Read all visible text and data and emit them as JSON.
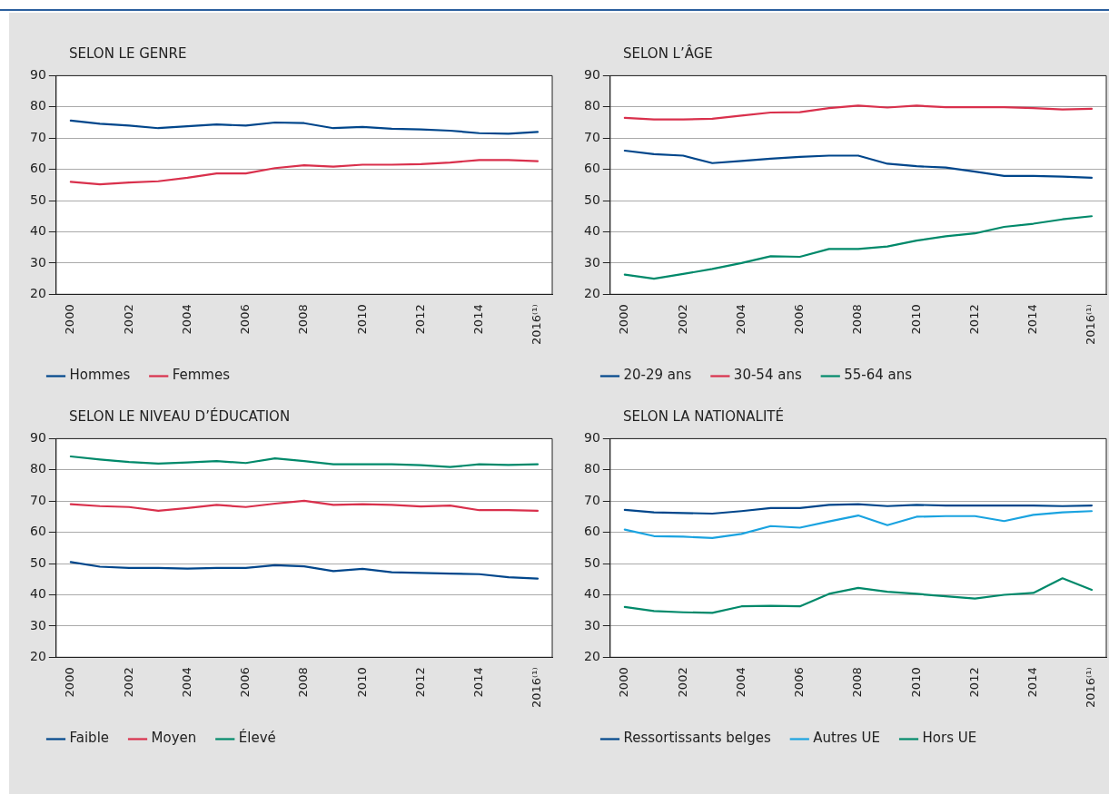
{
  "chart_data": [
    {
      "type": "line",
      "title": "SELON LE GENRE",
      "categories": [
        "2000",
        null,
        "2002",
        null,
        "2004",
        null,
        "2006",
        null,
        "2008",
        null,
        "2010",
        null,
        "2012",
        null,
        "2014",
        null,
        "2016⁽¹⁾"
      ],
      "ylim": [
        20,
        90
      ],
      "yticks": [
        20,
        30,
        40,
        50,
        60,
        70,
        80,
        90
      ],
      "grid": "y",
      "legend": "bottom",
      "marker": "none",
      "line_style": "solid",
      "series": [
        {
          "name": "Hommes",
          "color": "#00468b",
          "values": [
            75.6,
            74.6,
            74,
            73.2,
            73.8,
            74.4,
            74,
            75,
            74.8,
            73.2,
            73.6,
            73,
            72.8,
            72.4,
            71.6,
            71.4,
            72
          ]
        },
        {
          "name": "Femmes",
          "color": "#d9304c",
          "values": [
            56,
            55.2,
            55.8,
            56.2,
            57.3,
            58.7,
            58.7,
            60.4,
            61.3,
            60.9,
            61.5,
            61.5,
            61.7,
            62.2,
            63,
            63,
            62.6
          ]
        }
      ]
    },
    {
      "type": "line",
      "title": "SELON L’ÂGE",
      "categories": [
        "2000",
        null,
        "2002",
        null,
        "2004",
        null,
        "2006",
        null,
        "2008",
        null,
        "2010",
        null,
        "2012",
        null,
        "2014",
        null,
        "2016⁽¹⁾"
      ],
      "ylim": [
        20,
        90
      ],
      "yticks": [
        20,
        30,
        40,
        50,
        60,
        70,
        80,
        90
      ],
      "grid": "y",
      "legend": "bottom",
      "marker": "none",
      "line_style": "solid",
      "series": [
        {
          "name": "20-29 ans",
          "color": "#00468b",
          "values": [
            66,
            64.9,
            64.4,
            62,
            62.7,
            63.4,
            64,
            64.4,
            64.4,
            61.8,
            61,
            60.6,
            59.3,
            57.9,
            57.9,
            57.7,
            57.3
          ]
        },
        {
          "name": "30-54 ans",
          "color": "#d9304c",
          "values": [
            76.5,
            76,
            76,
            76.2,
            77.2,
            78.2,
            78.3,
            79.6,
            80.4,
            79.8,
            80.4,
            79.9,
            79.9,
            79.9,
            79.6,
            79.2,
            79.4
          ]
        },
        {
          "name": "55-64 ans",
          "color": "#00896a",
          "values": [
            26.3,
            25,
            26.5,
            28.1,
            30,
            32.2,
            32,
            34.5,
            34.5,
            35.3,
            37.2,
            38.6,
            39.5,
            41.6,
            42.6,
            44,
            45
          ]
        }
      ]
    },
    {
      "type": "line",
      "title": "SELON LE NIVEAU D’ÉDUCATION",
      "categories": [
        "2000",
        null,
        "2002",
        null,
        "2004",
        null,
        "2006",
        null,
        "2008",
        null,
        "2010",
        null,
        "2012",
        null,
        "2014",
        null,
        "2016⁽¹⁾"
      ],
      "ylim": [
        20,
        90
      ],
      "yticks": [
        20,
        30,
        40,
        50,
        60,
        70,
        80,
        90
      ],
      "grid": "y",
      "legend": "bottom",
      "marker": "none",
      "line_style": "solid",
      "series": [
        {
          "name": "Faible",
          "color": "#00468b",
          "values": [
            50.5,
            49,
            48.6,
            48.6,
            48.4,
            48.6,
            48.6,
            49.5,
            49.1,
            47.6,
            48.3,
            47.2,
            47,
            46.8,
            46.6,
            45.6,
            45.2
          ]
        },
        {
          "name": "Moyen",
          "color": "#d9304c",
          "values": [
            69,
            68.4,
            68.1,
            66.9,
            67.8,
            68.8,
            68.1,
            69.2,
            70.1,
            68.8,
            69,
            68.8,
            68.3,
            68.6,
            67.1,
            67.1,
            66.9
          ]
        },
        {
          "name": "Élevé",
          "color": "#00896a",
          "values": [
            84.3,
            83.3,
            82.5,
            82,
            82.4,
            82.8,
            82.2,
            83.7,
            82.8,
            81.8,
            81.8,
            81.8,
            81.5,
            80.9,
            81.8,
            81.6,
            81.8
          ]
        }
      ]
    },
    {
      "type": "line",
      "title": "SELON LA NATIONALITÉ",
      "categories": [
        "2000",
        null,
        "2002",
        null,
        "2004",
        null,
        "2006",
        null,
        "2008",
        null,
        "2010",
        null,
        "2012",
        null,
        "2014",
        null,
        "2016⁽¹⁾"
      ],
      "ylim": [
        20,
        90
      ],
      "yticks": [
        20,
        30,
        40,
        50,
        60,
        70,
        80,
        90
      ],
      "grid": "y",
      "legend": "bottom",
      "marker": "none",
      "line_style": "solid",
      "series": [
        {
          "name": "Ressortissants belges",
          "color": "#00468b",
          "values": [
            67.2,
            66.4,
            66.2,
            66,
            66.8,
            67.8,
            67.8,
            68.8,
            69,
            68.4,
            68.8,
            68.6,
            68.6,
            68.6,
            68.6,
            68.4,
            68.6
          ]
        },
        {
          "name": "Autres UE",
          "color": "#1aa3e0",
          "values": [
            60.9,
            58.8,
            58.6,
            58.2,
            59.5,
            62,
            61.5,
            63.5,
            65.4,
            62.3,
            65,
            65.2,
            65.2,
            63.6,
            65.6,
            66.4,
            66.8
          ]
        },
        {
          "name": "Hors UE",
          "color": "#00896a",
          "values": [
            36.1,
            34.8,
            34.4,
            34.2,
            36.3,
            36.5,
            36.3,
            40.3,
            42.2,
            41,
            40.3,
            39.5,
            38.8,
            40,
            40.6,
            45.3,
            41.6
          ]
        }
      ]
    }
  ]
}
